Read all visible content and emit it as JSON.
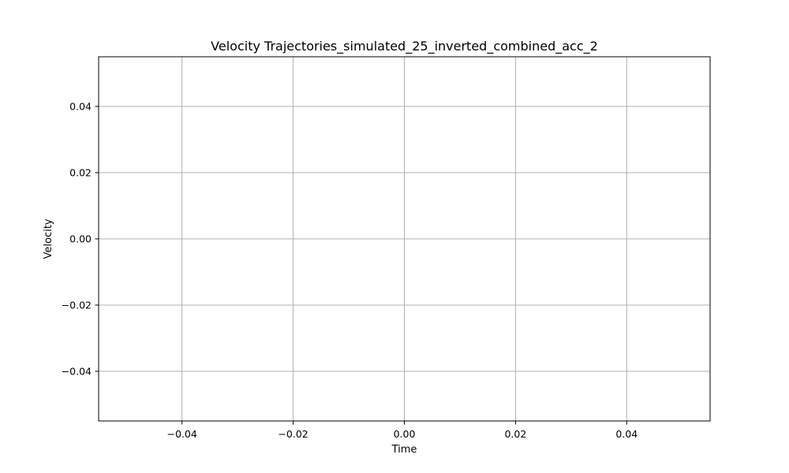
{
  "chart_data": {
    "type": "line",
    "title": "Velocity Trajectories_simulated_25_inverted_combined_acc_2",
    "xlabel": "Time",
    "ylabel": "Velocity",
    "xlim": [
      -0.055,
      0.055
    ],
    "ylim": [
      -0.055,
      0.055
    ],
    "x_ticks": [
      -0.04,
      -0.02,
      0.0,
      0.02,
      0.04
    ],
    "x_tick_labels": [
      "−0.04",
      "−0.02",
      "0.00",
      "0.02",
      "0.04"
    ],
    "y_ticks": [
      0.04,
      0.02,
      0.0,
      -0.02,
      -0.04
    ],
    "y_tick_labels": [
      "0.04",
      "0.02",
      "0.00",
      "−0.02",
      "−0.04"
    ],
    "grid": true,
    "series": [],
    "colors": {
      "grid": "#b0b0b0",
      "axes": "#000000",
      "background": "#ffffff"
    }
  }
}
